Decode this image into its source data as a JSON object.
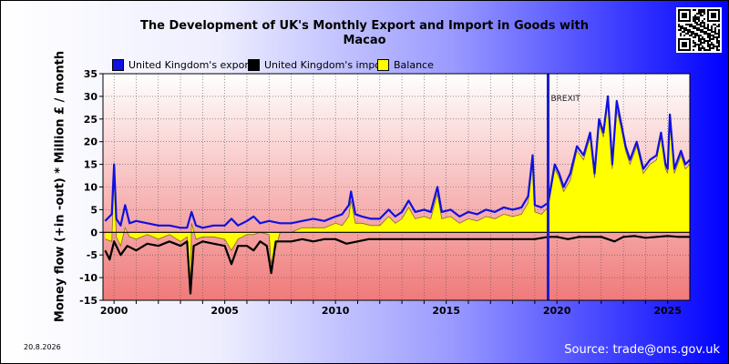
{
  "page": {
    "title_line1": "The Development of UK's Monthly Export and Import in Goods with",
    "title_line2": "Macao",
    "date_stamp": "20.8.2026",
    "source": "Source: trade@ons.gov.uk",
    "qr_icon": "qr-code-icon"
  },
  "colors": {
    "export": "#1010e0",
    "import": "#000000",
    "balance": "#ffff00",
    "brexit_line": "#1a1ad0",
    "plot_top": "#ffffff",
    "plot_bottom": "#f07a7a"
  },
  "chart_data": {
    "type": "line",
    "title": "The Development of UK's Monthly Export and Import in Goods with Macao",
    "ylabel": "Money flow (+in -out) * Million £ / month",
    "xlabel": "",
    "ylim": [
      -15,
      35
    ],
    "yticks": [
      -15,
      -10,
      -5,
      0,
      5,
      10,
      15,
      20,
      25,
      30,
      35
    ],
    "xlim": [
      1999.5,
      2026.0
    ],
    "xticks": [
      2000,
      2005,
      2010,
      2015,
      2020,
      2025
    ],
    "grid": true,
    "legend_position": "top",
    "annotations": [
      {
        "text": "BREXIT",
        "x": 2019.6
      }
    ],
    "series": [
      {
        "name": "United Kingdom's export",
        "color": "#1010e0",
        "points": [
          [
            1999.6,
            2.5
          ],
          [
            1999.9,
            4
          ],
          [
            2000.0,
            15
          ],
          [
            2000.1,
            3
          ],
          [
            2000.3,
            1.5
          ],
          [
            2000.5,
            6
          ],
          [
            2000.7,
            2
          ],
          [
            2001.0,
            2.5
          ],
          [
            2001.5,
            2
          ],
          [
            2002.0,
            1.5
          ],
          [
            2002.5,
            1.5
          ],
          [
            2003.0,
            1
          ],
          [
            2003.3,
            1
          ],
          [
            2003.5,
            4.5
          ],
          [
            2003.7,
            1.5
          ],
          [
            2004.0,
            1
          ],
          [
            2004.5,
            1.5
          ],
          [
            2005.0,
            1.5
          ],
          [
            2005.3,
            3
          ],
          [
            2005.6,
            1.5
          ],
          [
            2006.0,
            2.5
          ],
          [
            2006.3,
            3.5
          ],
          [
            2006.6,
            2
          ],
          [
            2007.0,
            2.5
          ],
          [
            2007.5,
            2
          ],
          [
            2008.0,
            2
          ],
          [
            2008.5,
            2.5
          ],
          [
            2009.0,
            3
          ],
          [
            2009.5,
            2.5
          ],
          [
            2010.0,
            3.5
          ],
          [
            2010.3,
            4
          ],
          [
            2010.6,
            6
          ],
          [
            2010.7,
            9
          ],
          [
            2010.9,
            4
          ],
          [
            2011.2,
            3.5
          ],
          [
            2011.6,
            3
          ],
          [
            2012.0,
            3
          ],
          [
            2012.4,
            5
          ],
          [
            2012.7,
            3.5
          ],
          [
            2013.0,
            4.5
          ],
          [
            2013.3,
            7
          ],
          [
            2013.6,
            4.5
          ],
          [
            2014.0,
            5
          ],
          [
            2014.3,
            4.5
          ],
          [
            2014.6,
            10
          ],
          [
            2014.8,
            4.5
          ],
          [
            2015.2,
            5
          ],
          [
            2015.6,
            3.5
          ],
          [
            2016.0,
            4.5
          ],
          [
            2016.4,
            4
          ],
          [
            2016.8,
            5
          ],
          [
            2017.2,
            4.5
          ],
          [
            2017.6,
            5.5
          ],
          [
            2018.0,
            5
          ],
          [
            2018.4,
            5.5
          ],
          [
            2018.7,
            8
          ],
          [
            2018.9,
            17
          ],
          [
            2019.0,
            6
          ],
          [
            2019.3,
            5.5
          ],
          [
            2019.6,
            6.5
          ],
          [
            2019.9,
            15
          ],
          [
            2020.1,
            13
          ],
          [
            2020.3,
            10
          ],
          [
            2020.6,
            13
          ],
          [
            2020.9,
            19
          ],
          [
            2021.2,
            17
          ],
          [
            2021.5,
            22
          ],
          [
            2021.7,
            13
          ],
          [
            2021.9,
            25
          ],
          [
            2022.1,
            22
          ],
          [
            2022.3,
            30
          ],
          [
            2022.5,
            15
          ],
          [
            2022.7,
            29
          ],
          [
            2022.9,
            24
          ],
          [
            2023.1,
            19
          ],
          [
            2023.3,
            16
          ],
          [
            2023.6,
            20
          ],
          [
            2023.9,
            14
          ],
          [
            2024.2,
            16
          ],
          [
            2024.5,
            17
          ],
          [
            2024.7,
            22
          ],
          [
            2024.9,
            15
          ],
          [
            2025.0,
            14
          ],
          [
            2025.1,
            26
          ],
          [
            2025.3,
            14
          ],
          [
            2025.6,
            18
          ],
          [
            2025.8,
            15
          ],
          [
            2026.0,
            16
          ]
        ]
      },
      {
        "name": "United Kingdom's import",
        "color": "#000000",
        "points": [
          [
            1999.6,
            -4
          ],
          [
            1999.8,
            -6
          ],
          [
            2000.0,
            -2
          ],
          [
            2000.3,
            -5
          ],
          [
            2000.6,
            -3
          ],
          [
            2001.0,
            -4
          ],
          [
            2001.5,
            -2.5
          ],
          [
            2002.0,
            -3
          ],
          [
            2002.5,
            -2
          ],
          [
            2003.0,
            -3
          ],
          [
            2003.3,
            -2
          ],
          [
            2003.45,
            -13.5
          ],
          [
            2003.6,
            -3
          ],
          [
            2004.0,
            -2
          ],
          [
            2004.5,
            -2.5
          ],
          [
            2005.0,
            -3
          ],
          [
            2005.3,
            -7
          ],
          [
            2005.6,
            -3
          ],
          [
            2006.0,
            -3
          ],
          [
            2006.3,
            -4
          ],
          [
            2006.6,
            -2
          ],
          [
            2006.9,
            -3
          ],
          [
            2007.1,
            -9
          ],
          [
            2007.3,
            -2
          ],
          [
            2008.0,
            -2
          ],
          [
            2008.5,
            -1.5
          ],
          [
            2009.0,
            -2
          ],
          [
            2009.5,
            -1.5
          ],
          [
            2010.0,
            -1.5
          ],
          [
            2010.5,
            -2.5
          ],
          [
            2011.0,
            -2
          ],
          [
            2011.5,
            -1.5
          ],
          [
            2012.0,
            -1.5
          ],
          [
            2013.0,
            -1.5
          ],
          [
            2014.0,
            -1.5
          ],
          [
            2015.0,
            -1.5
          ],
          [
            2016.0,
            -1.5
          ],
          [
            2017.0,
            -1.5
          ],
          [
            2018.0,
            -1.5
          ],
          [
            2019.0,
            -1.5
          ],
          [
            2019.6,
            -1
          ],
          [
            2020.0,
            -1
          ],
          [
            2020.5,
            -1.5
          ],
          [
            2021.0,
            -1
          ],
          [
            2022.0,
            -1
          ],
          [
            2022.6,
            -2
          ],
          [
            2023.0,
            -1
          ],
          [
            2023.5,
            -0.8
          ],
          [
            2024.0,
            -1.2
          ],
          [
            2024.5,
            -1
          ],
          [
            2025.0,
            -0.8
          ],
          [
            2025.5,
            -1
          ],
          [
            2026.0,
            -1
          ]
        ]
      },
      {
        "name": "Balance",
        "color": "#ffff00",
        "points": [
          [
            1999.6,
            -1.5
          ],
          [
            1999.9,
            -2
          ],
          [
            2000.0,
            13
          ],
          [
            2000.1,
            -1
          ],
          [
            2000.3,
            -3
          ],
          [
            2000.5,
            1
          ],
          [
            2000.7,
            -1
          ],
          [
            2001.0,
            -1.5
          ],
          [
            2001.5,
            -0.5
          ],
          [
            2002.0,
            -1.5
          ],
          [
            2002.5,
            -0.5
          ],
          [
            2003.0,
            -2
          ],
          [
            2003.3,
            -1
          ],
          [
            2003.45,
            -12
          ],
          [
            2003.5,
            2
          ],
          [
            2003.7,
            -1.5
          ],
          [
            2004.0,
            -1
          ],
          [
            2004.5,
            -1
          ],
          [
            2005.0,
            -1.5
          ],
          [
            2005.3,
            -4
          ],
          [
            2005.6,
            -1.5
          ],
          [
            2006.0,
            -0.5
          ],
          [
            2006.3,
            -0.5
          ],
          [
            2006.6,
            0
          ],
          [
            2007.0,
            -0.5
          ],
          [
            2007.1,
            -7
          ],
          [
            2007.5,
            0
          ],
          [
            2008.0,
            0
          ],
          [
            2008.5,
            1
          ],
          [
            2009.0,
            1
          ],
          [
            2009.5,
            1
          ],
          [
            2010.0,
            2
          ],
          [
            2010.3,
            1.5
          ],
          [
            2010.6,
            3.5
          ],
          [
            2010.7,
            7
          ],
          [
            2010.9,
            2
          ],
          [
            2011.2,
            2
          ],
          [
            2011.6,
            1.5
          ],
          [
            2012.0,
            1.5
          ],
          [
            2012.4,
            3.5
          ],
          [
            2012.7,
            2
          ],
          [
            2013.0,
            3
          ],
          [
            2013.3,
            5.5
          ],
          [
            2013.6,
            3
          ],
          [
            2014.0,
            3.5
          ],
          [
            2014.3,
            3
          ],
          [
            2014.6,
            8.5
          ],
          [
            2014.8,
            3
          ],
          [
            2015.2,
            3.5
          ],
          [
            2015.6,
            2
          ],
          [
            2016.0,
            3
          ],
          [
            2016.4,
            2.5
          ],
          [
            2016.8,
            3.5
          ],
          [
            2017.2,
            3
          ],
          [
            2017.6,
            4
          ],
          [
            2018.0,
            3.5
          ],
          [
            2018.4,
            4
          ],
          [
            2018.7,
            6.5
          ],
          [
            2018.9,
            15.5
          ],
          [
            2019.0,
            4.5
          ],
          [
            2019.3,
            4
          ],
          [
            2019.6,
            5.5
          ],
          [
            2019.9,
            14
          ],
          [
            2020.1,
            12
          ],
          [
            2020.3,
            9
          ],
          [
            2020.6,
            11.5
          ],
          [
            2020.9,
            18
          ],
          [
            2021.2,
            16
          ],
          [
            2021.5,
            21
          ],
          [
            2021.7,
            12
          ],
          [
            2021.9,
            24
          ],
          [
            2022.1,
            21
          ],
          [
            2022.3,
            29
          ],
          [
            2022.5,
            14
          ],
          [
            2022.7,
            27
          ],
          [
            2022.9,
            23
          ],
          [
            2023.1,
            18
          ],
          [
            2023.3,
            15
          ],
          [
            2023.6,
            19
          ],
          [
            2023.9,
            13
          ],
          [
            2024.2,
            15
          ],
          [
            2024.5,
            16
          ],
          [
            2024.7,
            21
          ],
          [
            2024.9,
            14
          ],
          [
            2025.0,
            13
          ],
          [
            2025.1,
            25
          ],
          [
            2025.3,
            13
          ],
          [
            2025.6,
            17
          ],
          [
            2025.8,
            14
          ],
          [
            2026.0,
            15
          ]
        ]
      }
    ]
  }
}
